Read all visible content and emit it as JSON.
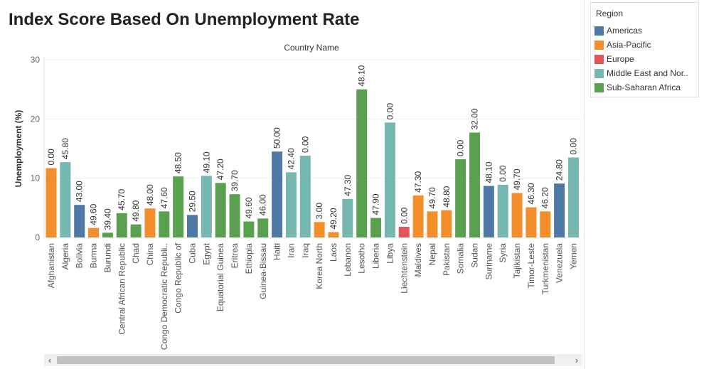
{
  "title": "Index Score Based On Unemployment Rate",
  "legend": {
    "title": "Region",
    "items": [
      {
        "label": "Americas",
        "color": "#4e79a7"
      },
      {
        "label": "Asia-Pacific",
        "color": "#f28e2b"
      },
      {
        "label": "Europe",
        "color": "#e15759"
      },
      {
        "label": "Middle East and Nor..",
        "color": "#76b7b2"
      },
      {
        "label": "Sub-Saharan Africa",
        "color": "#59a14f"
      }
    ]
  },
  "scrollbar": {
    "left_arrow": "‹",
    "right_arrow": "›"
  },
  "chart_data": {
    "type": "bar",
    "title": "Index Score Based On Unemployment Rate",
    "xlabel": "Country Name",
    "ylabel": "Unemployment (%)",
    "ylim": [
      0,
      30
    ],
    "yticks": [
      0,
      10,
      20,
      30
    ],
    "grid": true,
    "legend_position": "right",
    "region_colors": {
      "Americas": "#4e79a7",
      "Asia-Pacific": "#f28e2b",
      "Europe": "#e15759",
      "Middle East and North Africa": "#76b7b2",
      "Sub-Saharan Africa": "#59a14f"
    },
    "bars": [
      {
        "category": "Afghanistan",
        "value": 11.7,
        "label": "0.00",
        "region": "Asia-Pacific"
      },
      {
        "category": "Algeria",
        "value": 12.7,
        "label": "45.80",
        "region": "Middle East and North Africa"
      },
      {
        "category": "Bolivia",
        "value": 5.5,
        "label": "43.00",
        "region": "Americas"
      },
      {
        "category": "Burma",
        "value": 1.6,
        "label": "49.60",
        "region": "Asia-Pacific"
      },
      {
        "category": "Burundi",
        "value": 0.8,
        "label": "39.40",
        "region": "Sub-Saharan Africa"
      },
      {
        "category": "Central African Republic",
        "value": 4.1,
        "label": "45.70",
        "region": "Sub-Saharan Africa"
      },
      {
        "category": "Chad",
        "value": 2.2,
        "label": "49.80",
        "region": "Sub-Saharan Africa"
      },
      {
        "category": "China",
        "value": 4.9,
        "label": "48.00",
        "region": "Asia-Pacific"
      },
      {
        "category": "Congo Democratic Republi..",
        "value": 4.4,
        "label": "47.60",
        "region": "Sub-Saharan Africa"
      },
      {
        "category": "Congo Republic of",
        "value": 10.3,
        "label": "48.50",
        "region": "Sub-Saharan Africa"
      },
      {
        "category": "Cuba",
        "value": 3.8,
        "label": "29.50",
        "region": "Americas"
      },
      {
        "category": "Egypt",
        "value": 10.4,
        "label": "49.10",
        "region": "Middle East and North Africa"
      },
      {
        "category": "Equatorial Guinea",
        "value": 9.2,
        "label": "47.20",
        "region": "Sub-Saharan Africa"
      },
      {
        "category": "Eritrea",
        "value": 7.3,
        "label": "39.70",
        "region": "Sub-Saharan Africa"
      },
      {
        "category": "Ethiopia",
        "value": 2.7,
        "label": "49.60",
        "region": "Sub-Saharan Africa"
      },
      {
        "category": "Guinea-Bissau",
        "value": 3.2,
        "label": "46.00",
        "region": "Sub-Saharan Africa"
      },
      {
        "category": "Haiti",
        "value": 14.5,
        "label": "50.00",
        "region": "Americas"
      },
      {
        "category": "Iran",
        "value": 11.0,
        "label": "42.40",
        "region": "Middle East and North Africa"
      },
      {
        "category": "Iraq",
        "value": 13.8,
        "label": "0.00",
        "region": "Middle East and North Africa"
      },
      {
        "category": "Korea North",
        "value": 2.6,
        "label": "3.00",
        "region": "Asia-Pacific"
      },
      {
        "category": "Laos",
        "value": 0.9,
        "label": "49.20",
        "region": "Asia-Pacific"
      },
      {
        "category": "Lebanon",
        "value": 6.5,
        "label": "47.30",
        "region": "Middle East and North Africa"
      },
      {
        "category": "Lesotho",
        "value": 25.0,
        "label": "48.10",
        "region": "Sub-Saharan Africa"
      },
      {
        "category": "Liberia",
        "value": 3.3,
        "label": "47.90",
        "region": "Sub-Saharan Africa"
      },
      {
        "category": "Libya",
        "value": 19.4,
        "label": "0.00",
        "region": "Middle East and North Africa"
      },
      {
        "category": "Liechtenstein",
        "value": 1.8,
        "label": "0.00",
        "region": "Europe"
      },
      {
        "category": "Maldives",
        "value": 7.1,
        "label": "47.30",
        "region": "Asia-Pacific"
      },
      {
        "category": "Nepal",
        "value": 4.4,
        "label": "49.70",
        "region": "Asia-Pacific"
      },
      {
        "category": "Pakistan",
        "value": 4.6,
        "label": "48.80",
        "region": "Asia-Pacific"
      },
      {
        "category": "Somalia",
        "value": 13.2,
        "label": "0.00",
        "region": "Sub-Saharan Africa"
      },
      {
        "category": "Sudan",
        "value": 17.7,
        "label": "32.00",
        "region": "Sub-Saharan Africa"
      },
      {
        "category": "Suriname",
        "value": 8.7,
        "label": "48.10",
        "region": "Americas"
      },
      {
        "category": "Syria",
        "value": 8.9,
        "label": "0.00",
        "region": "Middle East and North Africa"
      },
      {
        "category": "Tajikistan",
        "value": 7.5,
        "label": "49.70",
        "region": "Asia-Pacific"
      },
      {
        "category": "Timor-Leste",
        "value": 5.1,
        "label": "46.30",
        "region": "Asia-Pacific"
      },
      {
        "category": "Turkmenistan",
        "value": 4.4,
        "label": "46.20",
        "region": "Asia-Pacific"
      },
      {
        "category": "Venezuela",
        "value": 9.1,
        "label": "24.80",
        "region": "Americas"
      },
      {
        "category": "Yemen",
        "value": 13.5,
        "label": "0.00",
        "region": "Middle East and North Africa"
      }
    ]
  }
}
